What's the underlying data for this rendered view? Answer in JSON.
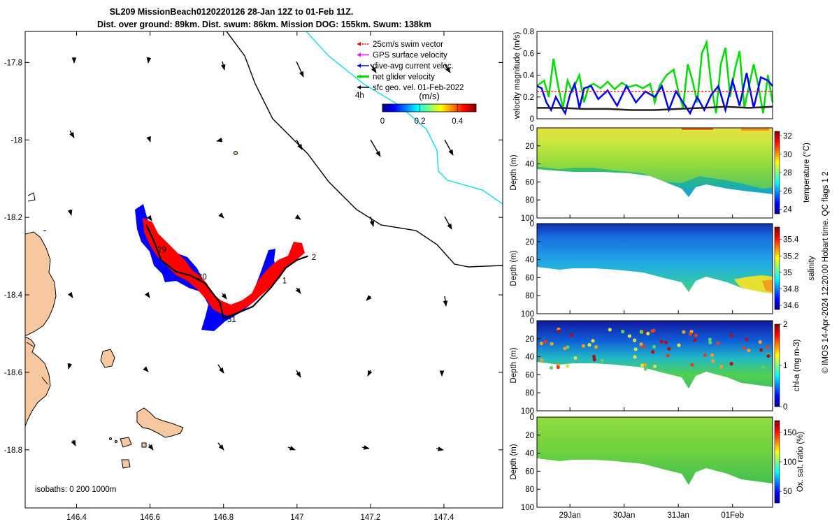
{
  "title": {
    "line1": "SL209 MissionBeach0120220126 28-Jan 12Z to 01-Feb 11Z.",
    "line2": "Dist. over ground: 89km. Dist. swum: 86km. Mission DOG: 155km. Swum: 138km"
  },
  "side_text": "© IMOS 14-Apr-2024 12:20:00 Hobart time. QC flags 1  2",
  "map": {
    "legend": [
      {
        "label": "25cm/s swim vector",
        "color": "#ff0000",
        "dashed": true
      },
      {
        "label": "GPS surface velocity",
        "color": "#ff00ff",
        "dashed": false
      },
      {
        "label": "dive-avg current veloc.",
        "color": "#0000ff",
        "dashed": false
      },
      {
        "label": "net glider velocity",
        "color": "#00dd00",
        "dashed": false
      },
      {
        "label": "sfc geo. vel. 01-Feb-2022",
        "color": "#000000",
        "dashed": false
      }
    ],
    "arrow_scale_label": "4h",
    "colorbar": {
      "title": "(m/s)",
      "ticks": [
        "0",
        "0.2",
        "0.4"
      ],
      "range": [
        0,
        0.5
      ]
    },
    "isobaths_label": "isobaths: 0   200  1000m",
    "xlim": [
      146.26,
      147.56
    ],
    "ylim": [
      -18.95,
      -17.72
    ],
    "xticks": [
      "146.4",
      "146.6",
      "146.8",
      "147",
      "147.2",
      "147.4"
    ],
    "yticks": [
      "-17.8",
      "-18",
      "-18.2",
      "-18.4",
      "-18.6",
      "-18.8"
    ],
    "day_labels": [
      {
        "text": "29",
        "lon": 146.62,
        "lat": -18.29
      },
      {
        "text": "30",
        "lon": 146.73,
        "lat": -18.36
      },
      {
        "text": "31",
        "lon": 146.81,
        "lat": -18.47
      },
      {
        "text": "1",
        "lon": 146.96,
        "lat": -18.37
      },
      {
        "text": "2",
        "lon": 147.04,
        "lat": -18.31
      }
    ],
    "track": [
      [
        146.59,
        -18.22
      ],
      [
        146.61,
        -18.26
      ],
      [
        146.63,
        -18.31
      ],
      [
        146.67,
        -18.34
      ],
      [
        146.71,
        -18.35
      ],
      [
        146.75,
        -18.37
      ],
      [
        146.79,
        -18.42
      ],
      [
        146.8,
        -18.46
      ],
      [
        146.83,
        -18.45
      ],
      [
        146.88,
        -18.43
      ],
      [
        146.93,
        -18.38
      ],
      [
        146.97,
        -18.33
      ],
      [
        147.0,
        -18.31
      ],
      [
        147.03,
        -18.3
      ]
    ]
  },
  "chart_data": [
    {
      "type": "line",
      "ylabel": "velocity magnitude (m/s)",
      "ylim": [
        0,
        0.8
      ],
      "yticks": [
        "0",
        "0.2",
        "0.4",
        "0.6",
        "0.8"
      ],
      "xlim": [
        0,
        1
      ],
      "series": [
        {
          "color": "#00dd00",
          "x": [
            0.0,
            0.03,
            0.05,
            0.07,
            0.09,
            0.11,
            0.13,
            0.15,
            0.18,
            0.2,
            0.22,
            0.24,
            0.27,
            0.3,
            0.33,
            0.36,
            0.39,
            0.42,
            0.45,
            0.48,
            0.5,
            0.52,
            0.55,
            0.58,
            0.6,
            0.62,
            0.64,
            0.66,
            0.68,
            0.7,
            0.72,
            0.74,
            0.76,
            0.78,
            0.8,
            0.82,
            0.84,
            0.86,
            0.88,
            0.9,
            0.92,
            0.94,
            0.96,
            0.98,
            1.0
          ],
          "y": [
            0.3,
            0.35,
            0.2,
            0.55,
            0.3,
            0.1,
            0.35,
            0.25,
            0.4,
            0.15,
            0.3,
            0.32,
            0.28,
            0.34,
            0.27,
            0.33,
            0.29,
            0.31,
            0.28,
            0.32,
            0.15,
            0.3,
            0.4,
            0.45,
            0.25,
            0.1,
            0.5,
            0.35,
            0.15,
            0.6,
            0.7,
            0.3,
            0.05,
            0.5,
            0.65,
            0.2,
            0.45,
            0.62,
            0.1,
            0.3,
            0.5,
            0.3,
            0.05,
            0.4,
            0.15
          ]
        },
        {
          "color": "#0000ff",
          "x": [
            0.0,
            0.02,
            0.04,
            0.06,
            0.08,
            0.1,
            0.12,
            0.14,
            0.16,
            0.18,
            0.2,
            0.23,
            0.26,
            0.3,
            0.34,
            0.38,
            0.42,
            0.46,
            0.5,
            0.53,
            0.56,
            0.59,
            0.62,
            0.65,
            0.68,
            0.71,
            0.74,
            0.77,
            0.8,
            0.83,
            0.86,
            0.89,
            0.92,
            0.95,
            0.98,
            1.0
          ],
          "y": [
            0.3,
            0.28,
            0.15,
            0.08,
            0.2,
            0.12,
            0.05,
            0.22,
            0.32,
            0.1,
            0.28,
            0.3,
            0.18,
            0.26,
            0.12,
            0.3,
            0.15,
            0.25,
            0.2,
            0.3,
            0.08,
            0.25,
            0.15,
            0.05,
            0.2,
            0.08,
            0.22,
            0.3,
            0.08,
            0.35,
            0.12,
            0.42,
            0.1,
            0.38,
            0.35,
            0.3
          ]
        },
        {
          "color": "#222222",
          "x": [
            0.0,
            0.1,
            0.2,
            0.3,
            0.4,
            0.5,
            0.6,
            0.7,
            0.8,
            0.9,
            1.0
          ],
          "y": [
            0.1,
            0.1,
            0.09,
            0.09,
            0.08,
            0.08,
            0.09,
            0.1,
            0.11,
            0.1,
            0.11
          ]
        },
        {
          "color": "#ff0000",
          "dashed": true,
          "x": [
            0.0,
            1.0
          ],
          "y": [
            0.25,
            0.25
          ]
        }
      ]
    },
    {
      "type": "heatmap",
      "ylabel": "Depth (m)",
      "cbar_label": "temperature (°C)",
      "cbar_ticks": [
        "24",
        "26",
        "28",
        "30",
        "32"
      ],
      "cbar_range": [
        23.5,
        32.5
      ],
      "yticks": [
        "0",
        "20",
        "40",
        "60",
        "80",
        "100"
      ],
      "ylim": [
        0,
        100
      ]
    },
    {
      "type": "heatmap",
      "ylabel": "Depth (m)",
      "cbar_label": "salinity",
      "cbar_ticks": [
        "34.6",
        "34.8",
        "35",
        "35.2",
        "35.4"
      ],
      "cbar_range": [
        34.55,
        35.55
      ],
      "yticks": [
        "0",
        "20",
        "40",
        "60",
        "80",
        "100"
      ],
      "ylim": [
        0,
        100
      ]
    },
    {
      "type": "heatmap",
      "ylabel": "Depth (m)",
      "cbar_label": "chl-a (mg m-3)",
      "cbar_ticks": [
        "0",
        "1",
        "2"
      ],
      "cbar_range": [
        0,
        2
      ],
      "yticks": [
        "0",
        "20",
        "40",
        "60",
        "80",
        "100"
      ],
      "ylim": [
        0,
        100
      ]
    },
    {
      "type": "heatmap",
      "ylabel": "Depth (m)",
      "cbar_label": "Ox. sat. ratio (%)",
      "cbar_ticks": [
        "50",
        "100",
        "150"
      ],
      "cbar_range": [
        30,
        170
      ],
      "yticks": [
        "0",
        "20",
        "40",
        "60",
        "80",
        "100"
      ],
      "ylim": [
        0,
        100
      ],
      "xticks": [
        "29Jan",
        "30Jan",
        "31Jan",
        "01Feb"
      ]
    }
  ]
}
